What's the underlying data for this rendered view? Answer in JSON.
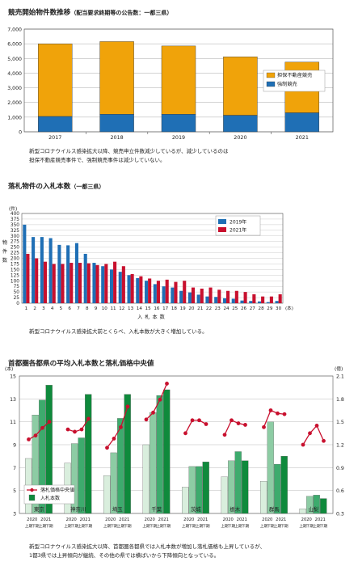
{
  "chart_data": [
    {
      "type": "bar",
      "stacked": true,
      "title": "競売開始物件数推移",
      "subtitle": "（配当要求終期等の公告数：一都三県）",
      "categories": [
        "2017",
        "2018",
        "2019",
        "2020",
        "2021"
      ],
      "series": [
        {
          "name": "担保不動産競売",
          "color": "#f0a30a",
          "values": [
            4950,
            4950,
            4650,
            3980,
            3450
          ]
        },
        {
          "name": "強制競売",
          "color": "#1f6fb5",
          "values": [
            1050,
            1200,
            1200,
            1130,
            1300
          ]
        }
      ],
      "yticks": [
        "0",
        "1,000",
        "2,000",
        "3,000",
        "4,000",
        "5,000",
        "6,000",
        "7,000"
      ],
      "ylim": [
        0,
        7000
      ],
      "legend": "right",
      "note": [
        "新型コロナウイルス感染拡大以降、競売申立件数減少しているが、減少しているのは",
        "担保不動産競売事件で、強制競売事件は減少していない。"
      ]
    },
    {
      "type": "bar",
      "title": "落札物件の入札本数",
      "subtitle": "（一都三県）",
      "categories": [
        "1",
        "2",
        "3",
        "4",
        "5",
        "6",
        "7",
        "8",
        "9",
        "10",
        "11",
        "12",
        "13",
        "14",
        "15",
        "16",
        "17",
        "18",
        "19",
        "20",
        "21",
        "22",
        "23",
        "24",
        "25",
        "26",
        "27",
        "28",
        "29",
        "30"
      ],
      "series": [
        {
          "name": "2019年",
          "color": "#1f6fb5",
          "values": [
            350,
            295,
            295,
            290,
            260,
            258,
            268,
            220,
            180,
            165,
            150,
            140,
            125,
            112,
            100,
            85,
            75,
            70,
            55,
            48,
            38,
            30,
            28,
            22,
            20,
            12,
            10,
            8,
            5,
            10
          ]
        },
        {
          "name": "2021年",
          "color": "#c8102e",
          "values": [
            220,
            200,
            185,
            175,
            175,
            180,
            180,
            178,
            170,
            175,
            185,
            165,
            130,
            120,
            110,
            100,
            105,
            95,
            100,
            70,
            65,
            70,
            60,
            55,
            55,
            50,
            40,
            30,
            30,
            40
          ]
        }
      ],
      "ylabel_unit": "(件)",
      "ylabel": "物件数",
      "xlabel": "入札本数",
      "xlabel_unit": "(本)",
      "yticks": [
        "0",
        "25",
        "50",
        "75",
        "100",
        "125",
        "150",
        "175",
        "200",
        "225",
        "250",
        "275",
        "300",
        "325",
        "350",
        "375",
        "400"
      ],
      "ylim": [
        0,
        400
      ],
      "legend": "top-right",
      "note": [
        "新型コロナウイルス感染拡大前とくらべ、入札本数が大きく増加している。"
      ]
    },
    {
      "type": "bar+line",
      "title": "首都圏各都県の平均入札本数と落札価格中央値",
      "categories": [
        "東京",
        "神奈川",
        "埼玉",
        "千葉",
        "茨城",
        "栃木",
        "群馬",
        "山梨"
      ],
      "periods": [
        "2020 上期",
        "2020 下期",
        "2021 上期",
        "2021 下期"
      ],
      "period_year_labels": [
        "2020",
        "2021"
      ],
      "period_half_labels": [
        "上期",
        "下期",
        "上期",
        "下期"
      ],
      "period_colors": [
        "#d9eedd",
        "#8dcca4",
        "#3dab6d",
        "#0f8a3c"
      ],
      "bars_name": "入札本数",
      "bars_unit": "(本)",
      "bars": [
        [
          7.8,
          11.6,
          12.9,
          14.2
        ],
        [
          7.4,
          9.1,
          9.6,
          13.4
        ],
        [
          6.3,
          8.3,
          11.3,
          13.4
        ],
        [
          9.0,
          11.8,
          13.3,
          13.8
        ],
        [
          5.3,
          7.1,
          7.1,
          7.5
        ],
        [
          6.2,
          7.6,
          8.4,
          7.6
        ],
        [
          5.8,
          11.0,
          7.3,
          8.0
        ],
        [
          3.4,
          4.5,
          4.6,
          4.3
        ]
      ],
      "line_name": "落札価格中央値",
      "line_unit": "(億)",
      "line_color": "#c8102e",
      "line": [
        [
          1.27,
          1.32,
          1.42,
          1.5
        ],
        [
          1.4,
          1.37,
          1.4,
          1.54
        ],
        [
          1.16,
          1.28,
          1.43,
          1.7
        ],
        [
          1.53,
          1.62,
          1.79,
          2.0
        ],
        [
          1.35,
          1.52,
          1.52,
          1.47
        ],
        [
          1.33,
          1.52,
          1.48,
          1.46
        ],
        [
          1.43,
          1.65,
          1.61,
          1.6
        ],
        [
          1.2,
          1.35,
          1.45,
          1.25
        ]
      ],
      "yticks_left": [
        "3",
        "5",
        "7",
        "9",
        "11",
        "13",
        "15"
      ],
      "ylim_left": [
        3,
        15
      ],
      "yticks_right": [
        "0.3",
        "0.6",
        "0.9",
        "1.2",
        "1.5",
        "1.8",
        "2.1"
      ],
      "ylim_right": [
        0.3,
        2.1
      ],
      "legend": "bottom-left",
      "note": [
        "新型コロナウイルス感染拡大以降、首都圏各都県では入札本数が増加し落札価格も上昇しているが、",
        "1都3県では上昇傾向が継続、その他の県では横ばいから下降傾向となっている。"
      ]
    }
  ]
}
